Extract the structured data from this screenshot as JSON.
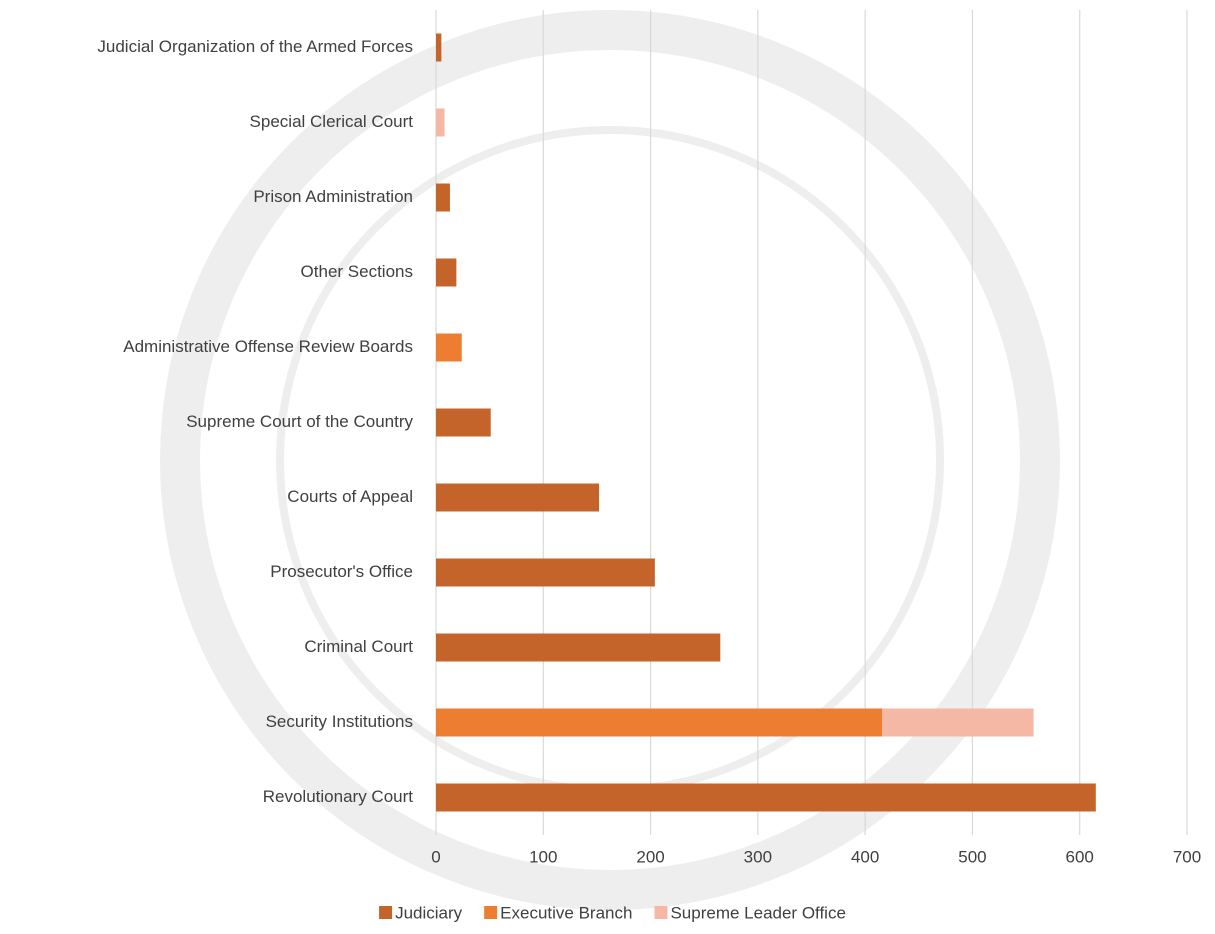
{
  "chart_data": {
    "type": "stacked-bar-horizontal",
    "categories": [
      "Revolutionary Court",
      "Security Institutions",
      "Criminal Court",
      "Prosecutor's Office",
      "Courts of Appeal",
      "Supreme Court of the Country",
      "Administrative Offense Review Boards",
      "Other Sections",
      "Prison Administration",
      "Special Clerical Court",
      "Judicial Organization of the Armed Forces"
    ],
    "series": [
      {
        "name": "Judiciary",
        "color": "#c5642a",
        "values": [
          615,
          null,
          265,
          204,
          152,
          51,
          null,
          19,
          13,
          null,
          5
        ]
      },
      {
        "name": "Executive Branch",
        "color": "#ed7d31",
        "values": [
          null,
          416,
          null,
          null,
          null,
          null,
          24,
          null,
          null,
          null,
          null
        ]
      },
      {
        "name": "Supreme Leader Office",
        "color": "#f4b8a4",
        "values": [
          null,
          141,
          null,
          null,
          null,
          null,
          null,
          null,
          null,
          8,
          null
        ]
      }
    ],
    "xlim": [
      0,
      700
    ],
    "xticks": [
      0,
      100,
      200,
      300,
      400,
      500,
      600,
      700
    ],
    "grid": true,
    "legend": "bottom"
  }
}
